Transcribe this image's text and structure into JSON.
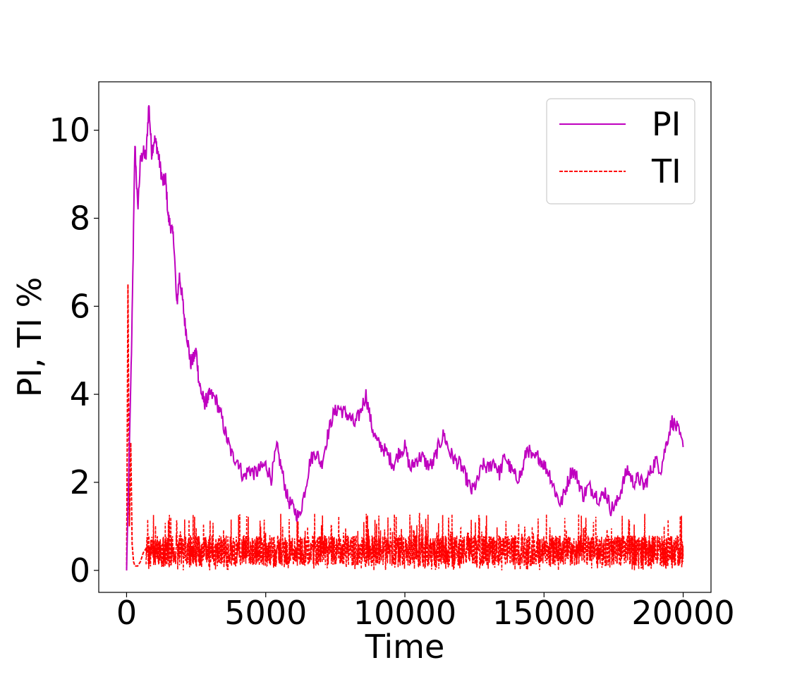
{
  "chart_data": {
    "type": "line",
    "xlabel": "Time",
    "ylabel": "PI, TI %",
    "xlim": [
      -1000,
      21000
    ],
    "ylim": [
      -0.5,
      11.1
    ],
    "x_ticks": [
      0,
      5000,
      10000,
      15000,
      20000
    ],
    "x_tick_labels": [
      "0",
      "5000",
      "10000",
      "15000",
      "20000"
    ],
    "y_ticks": [
      0,
      2,
      4,
      6,
      8,
      10
    ],
    "y_tick_labels": [
      "0",
      "2",
      "4",
      "6",
      "8",
      "10"
    ],
    "grid": false,
    "legend_position": "top-right",
    "series": [
      {
        "name": "PI",
        "color": "#bf00bf",
        "style": "solid",
        "x": [
          0,
          100,
          200,
          300,
          400,
          500,
          600,
          700,
          800,
          900,
          1000,
          1100,
          1200,
          1300,
          1400,
          1500,
          1600,
          1700,
          1800,
          1900,
          2000,
          2100,
          2200,
          2300,
          2400,
          2500,
          2600,
          2700,
          2800,
          2900,
          3000,
          3200,
          3400,
          3600,
          3800,
          4000,
          4200,
          4400,
          4600,
          4800,
          5000,
          5200,
          5400,
          5600,
          5800,
          6000,
          6200,
          6400,
          6600,
          6800,
          7000,
          7200,
          7400,
          7600,
          7800,
          8000,
          8200,
          8400,
          8600,
          8800,
          9000,
          9200,
          9400,
          9600,
          9800,
          10000,
          10200,
          10400,
          10600,
          10800,
          11000,
          11200,
          11400,
          11600,
          11800,
          12000,
          12200,
          12400,
          12600,
          12800,
          13000,
          13200,
          13400,
          13600,
          13800,
          14000,
          14200,
          14400,
          14600,
          14800,
          15000,
          15200,
          15400,
          15600,
          15800,
          16000,
          16200,
          16400,
          16600,
          16800,
          17000,
          17200,
          17400,
          17600,
          17800,
          18000,
          18200,
          18400,
          18600,
          18800,
          19000,
          19200,
          19400,
          19600,
          19800,
          20000
        ],
        "y": [
          0.0,
          2.8,
          5.7,
          9.7,
          8.2,
          9.3,
          9.5,
          9.4,
          10.6,
          9.5,
          9.8,
          9.6,
          9.2,
          8.8,
          8.9,
          8.0,
          7.8,
          7.5,
          6.0,
          6.7,
          6.2,
          5.6,
          5.2,
          4.7,
          4.8,
          5.0,
          4.3,
          4.0,
          3.8,
          3.9,
          4.0,
          3.9,
          3.5,
          3.0,
          2.6,
          2.5,
          2.1,
          2.3,
          2.2,
          2.3,
          2.4,
          2.1,
          2.8,
          2.2,
          1.6,
          1.4,
          1.2,
          1.8,
          2.5,
          2.7,
          2.4,
          3.0,
          3.5,
          3.7,
          3.6,
          3.5,
          3.3,
          3.6,
          4.0,
          3.3,
          2.9,
          2.8,
          2.6,
          2.4,
          2.7,
          2.8,
          2.3,
          2.5,
          2.6,
          2.4,
          2.4,
          2.8,
          3.1,
          2.7,
          2.5,
          2.4,
          2.1,
          1.8,
          2.0,
          2.4,
          2.3,
          2.5,
          2.2,
          2.6,
          2.3,
          2.1,
          2.2,
          2.8,
          2.5,
          2.6,
          2.4,
          2.2,
          1.8,
          1.5,
          1.9,
          2.3,
          2.1,
          1.7,
          1.9,
          1.8,
          1.6,
          1.8,
          1.4,
          1.5,
          1.9,
          2.3,
          2.0,
          2.1,
          1.9,
          2.2,
          2.5,
          2.3,
          2.9,
          3.4,
          3.2,
          2.8
        ]
      },
      {
        "name": "TI",
        "color": "#ff0000",
        "style": "dashed",
        "x": [
          0,
          50,
          100,
          150,
          200,
          250,
          300,
          350,
          400,
          500,
          600,
          700,
          800,
          1000
        ],
        "y": [
          0.0,
          6.5,
          1.0,
          2.9,
          0.6,
          0.2,
          0.1,
          0.1,
          0.1,
          0.2,
          0.4,
          0.5,
          0.5,
          0.45
        ],
        "noise_band": {
          "from_x": 700,
          "to_x": 20000,
          "min": 0.0,
          "max": 1.3,
          "typical_mean": 0.45
        }
      }
    ]
  }
}
